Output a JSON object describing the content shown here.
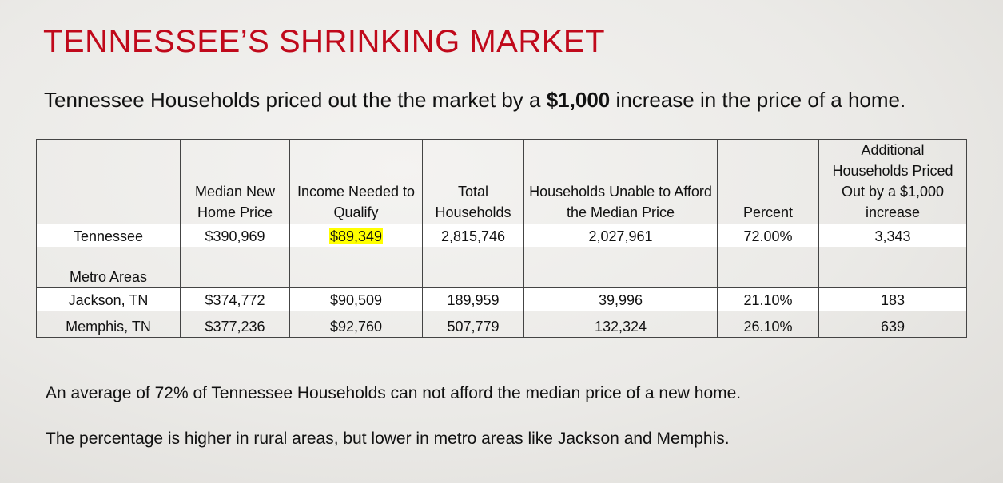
{
  "title": "TENNESSEE’S SHRINKING MARKET",
  "subtitle": {
    "before": "Tennessee Households priced out the the market by a ",
    "bold": "$1,000",
    "after": " increase in the price of a home."
  },
  "table": {
    "headers": [
      "",
      "Median New Home Price",
      "Income Needed to Qualify",
      "Total Households",
      "Households Unable to Afford the Median Price",
      "Percent",
      "Additional Households Priced Out by a $1,000 increase"
    ],
    "tennessee": {
      "name": "Tennessee",
      "median_price": "$390,969",
      "income_needed": "$89,349",
      "total_households": "2,815,746",
      "unable": "2,027,961",
      "percent": "72.00%",
      "additional": "3,343"
    },
    "metro_label": "Metro Areas",
    "jackson": {
      "name": "Jackson, TN",
      "median_price": "$374,772",
      "income_needed": "$90,509",
      "total_households": "189,959",
      "unable": "39,996",
      "percent": "21.10%",
      "additional": "183"
    },
    "memphis": {
      "name": "Memphis, TN",
      "median_price": "$377,236",
      "income_needed": "$92,760",
      "total_households": "507,779",
      "unable": "132,324",
      "percent": "26.10%",
      "additional": "639"
    },
    "highlight_color": "#ffff00"
  },
  "notes": {
    "line1": "An average of 72% of Tennessee Households can not afford the median price of a new home.",
    "line2": "The percentage is higher in rural areas, but lower in metro areas like Jackson and Memphis."
  },
  "colors": {
    "title": "#c0091b"
  }
}
